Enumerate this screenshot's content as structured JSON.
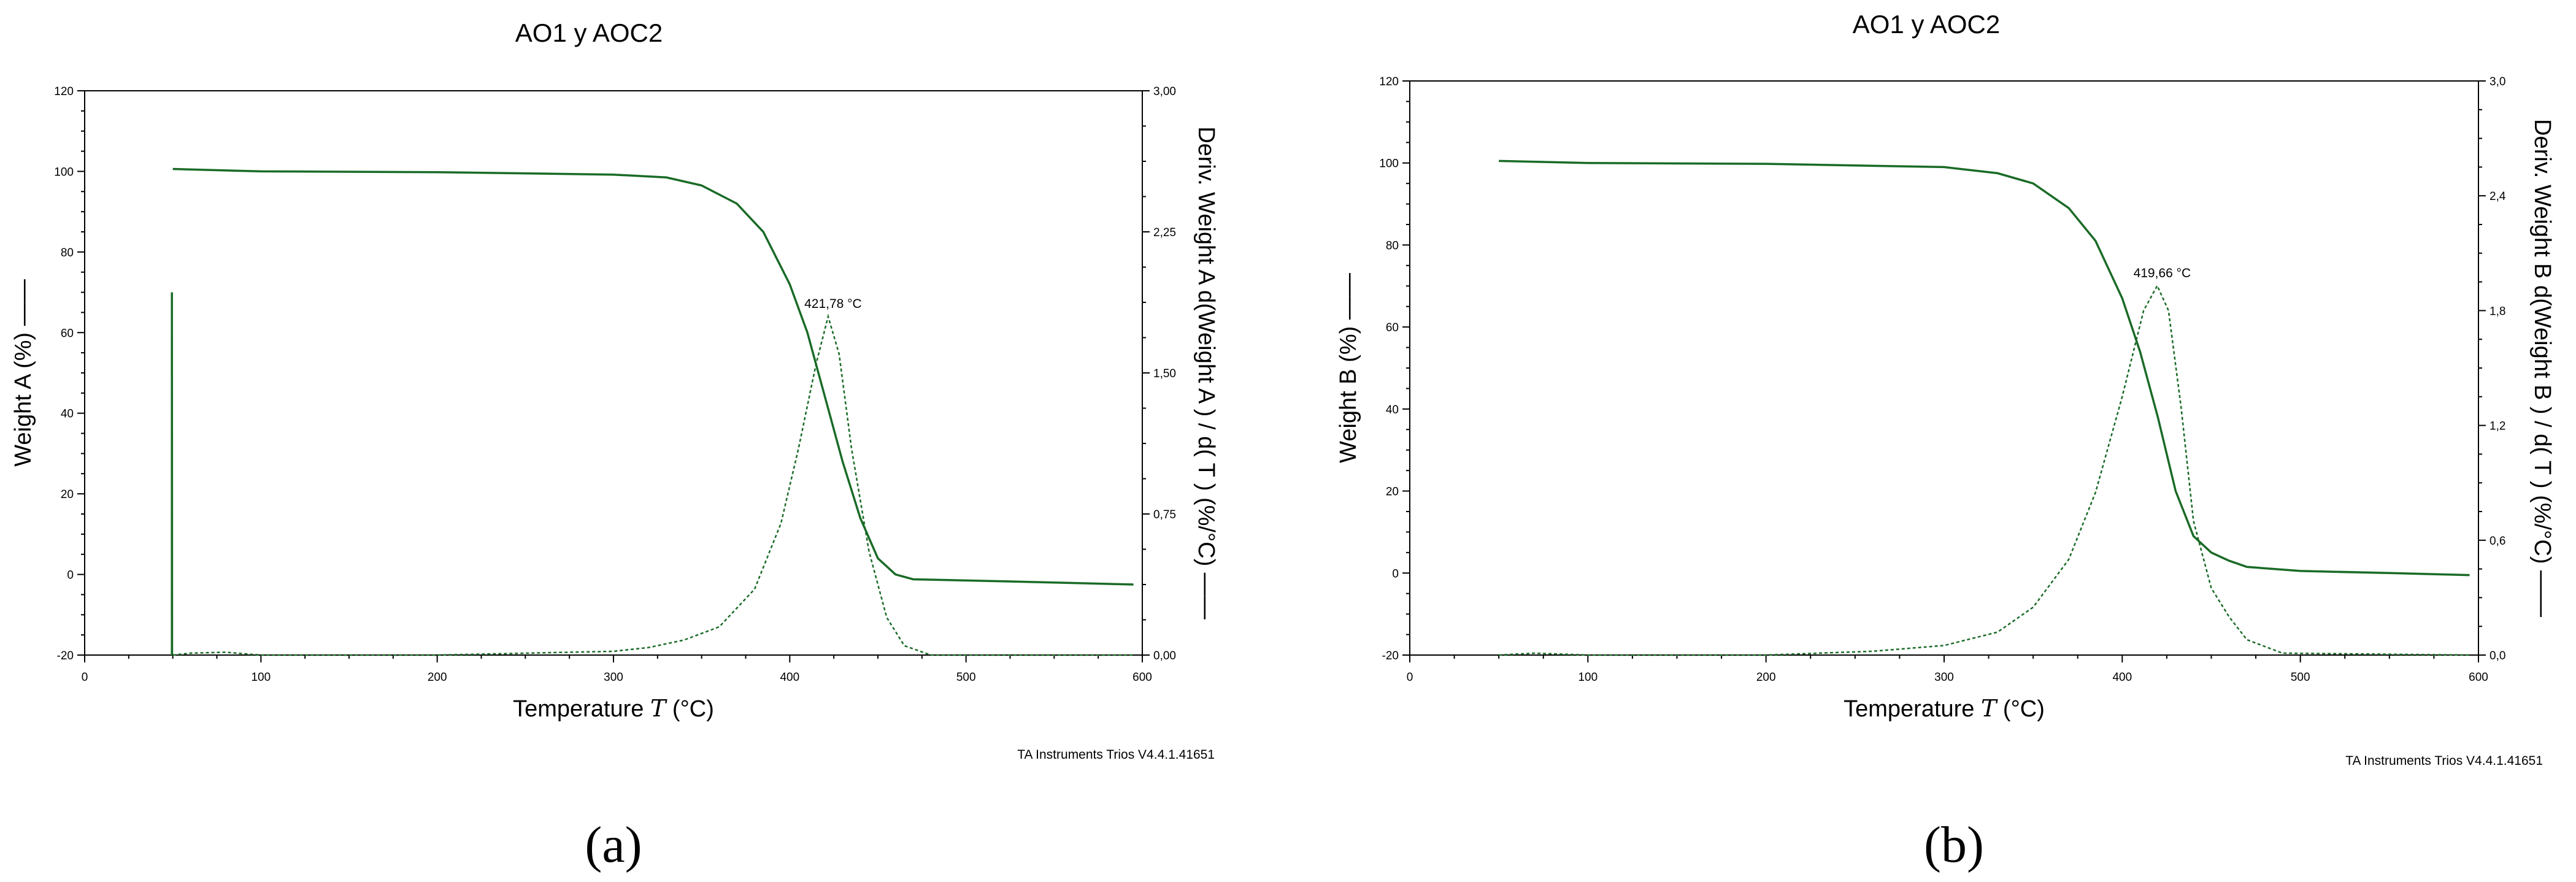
{
  "chart_data": [
    {
      "id": "a",
      "type": "line",
      "panel_label": "(a)",
      "title": "AO1  y  AOC2",
      "xlabel": "Temperature",
      "xlabel_symbol": "T",
      "xlabel_unit": "(°C)",
      "ylabel": "Weight A  (%) ——",
      "y2label": "Deriv. Weight A d(Weight A ) / d( T )  (%/°C) ——",
      "xlim": [
        0,
        600
      ],
      "ylim": [
        -20,
        120
      ],
      "y2lim": [
        0,
        3
      ],
      "x_ticks": [
        0,
        100,
        200,
        300,
        400,
        500,
        600
      ],
      "y_ticks": [
        -20,
        0,
        20,
        40,
        60,
        80,
        100,
        120
      ],
      "y2_ticks": [
        "0,00",
        "0,75",
        "1,50",
        "2,25",
        "3,00"
      ],
      "annotation": "421,78 °C",
      "footer": "TA Instruments Trios V4.4.1.41651",
      "color": "#1a6b27",
      "series": [
        {
          "name": "Weight A",
          "axis": "left",
          "style": "solid",
          "points": [
            [
              50,
              100.6
            ],
            [
              100,
              100.0
            ],
            [
              200,
              99.8
            ],
            [
              300,
              99.2
            ],
            [
              330,
              98.5
            ],
            [
              350,
              96.5
            ],
            [
              370,
              92
            ],
            [
              385,
              85
            ],
            [
              400,
              72
            ],
            [
              410,
              60
            ],
            [
              420,
              44
            ],
            [
              430,
              28
            ],
            [
              440,
              14
            ],
            [
              450,
              4
            ],
            [
              460,
              0
            ],
            [
              470,
              -1.2
            ],
            [
              500,
              -1.5
            ],
            [
              550,
              -2
            ],
            [
              595,
              -2.5
            ]
          ]
        },
        {
          "name": "Deriv. Weight A",
          "axis": "right",
          "style": "dashed",
          "points": [
            [
              50,
              0.0
            ],
            [
              60,
              0.01
            ],
            [
              80,
              0.015
            ],
            [
              100,
              0.0
            ],
            [
              200,
              0.0
            ],
            [
              300,
              0.02
            ],
            [
              320,
              0.04
            ],
            [
              340,
              0.08
            ],
            [
              360,
              0.15
            ],
            [
              380,
              0.35
            ],
            [
              395,
              0.7
            ],
            [
              405,
              1.1
            ],
            [
              415,
              1.55
            ],
            [
              421.78,
              1.8
            ],
            [
              428,
              1.6
            ],
            [
              435,
              1.1
            ],
            [
              445,
              0.55
            ],
            [
              455,
              0.2
            ],
            [
              465,
              0.05
            ],
            [
              480,
              0.0
            ],
            [
              595,
              0.0
            ]
          ]
        },
        {
          "name": "initial spike",
          "axis": "left",
          "style": "solid",
          "points": [
            [
              49.5,
              -20
            ],
            [
              49.5,
              70
            ],
            [
              49.6,
              -20
            ]
          ]
        }
      ]
    },
    {
      "id": "b",
      "type": "line",
      "panel_label": "(b)",
      "title": "AO1  y  AOC2",
      "xlabel": "Temperature",
      "xlabel_symbol": "T",
      "xlabel_unit": "(°C)",
      "ylabel": "Weight B  (%) ——",
      "y2label": "Deriv. Weight B d(Weight B ) / d( T )  (%/°C) ——",
      "xlim": [
        0,
        600
      ],
      "ylim": [
        -20,
        120
      ],
      "y2lim": [
        0,
        3
      ],
      "x_ticks": [
        0,
        100,
        200,
        300,
        400,
        500,
        600
      ],
      "y_ticks": [
        -20,
        0,
        20,
        40,
        60,
        80,
        100,
        120
      ],
      "y2_ticks": [
        "0,0",
        "0,6",
        "1,2",
        "1,8",
        "2,4",
        "3,0"
      ],
      "annotation": "419,66 °C",
      "footer": "TA Instruments Trios V4.4.1.41651",
      "color": "#1a6b27",
      "series": [
        {
          "name": "Weight B",
          "axis": "left",
          "style": "solid",
          "points": [
            [
              50,
              100.5
            ],
            [
              100,
              100.0
            ],
            [
              200,
              99.8
            ],
            [
              300,
              99.0
            ],
            [
              330,
              97.5
            ],
            [
              350,
              95
            ],
            [
              370,
              89
            ],
            [
              385,
              81
            ],
            [
              400,
              67
            ],
            [
              410,
              54
            ],
            [
              420,
              38
            ],
            [
              430,
              20
            ],
            [
              440,
              9
            ],
            [
              450,
              5
            ],
            [
              460,
              3
            ],
            [
              470,
              1.5
            ],
            [
              500,
              0.5
            ],
            [
              550,
              0
            ],
            [
              595,
              -0.5
            ]
          ]
        },
        {
          "name": "Deriv. Weight B",
          "axis": "right",
          "style": "dashed",
          "points": [
            [
              50,
              0.0
            ],
            [
              70,
              0.01
            ],
            [
              100,
              0.0
            ],
            [
              200,
              0.0
            ],
            [
              260,
              0.02
            ],
            [
              300,
              0.05
            ],
            [
              330,
              0.12
            ],
            [
              350,
              0.25
            ],
            [
              370,
              0.5
            ],
            [
              385,
              0.85
            ],
            [
              400,
              1.35
            ],
            [
              412,
              1.8
            ],
            [
              419.66,
              1.93
            ],
            [
              426,
              1.8
            ],
            [
              433,
              1.3
            ],
            [
              440,
              0.7
            ],
            [
              450,
              0.35
            ],
            [
              460,
              0.2
            ],
            [
              470,
              0.08
            ],
            [
              490,
              0.01
            ],
            [
              595,
              0.0
            ]
          ]
        }
      ]
    }
  ]
}
